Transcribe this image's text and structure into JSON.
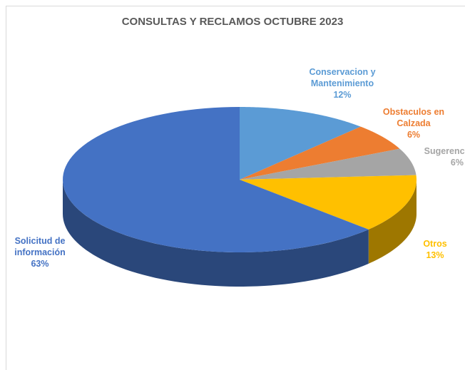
{
  "chart_data": {
    "type": "pie",
    "title": "CONSULTAS Y RECLAMOS OCTUBRE 2023",
    "categories": [
      "Conservacion y Mantenimiento",
      "Obstaculos en Calzada",
      "Sugerencia",
      "Otros",
      "Solicitud de información"
    ],
    "values": [
      12,
      6,
      6,
      13,
      63
    ],
    "value_labels": [
      "12%",
      "6%",
      "6%",
      "13%",
      "63%"
    ],
    "colors": [
      "#5b9bd5",
      "#ed7d31",
      "#a5a5a5",
      "#ffc000",
      "#4472c4"
    ]
  }
}
